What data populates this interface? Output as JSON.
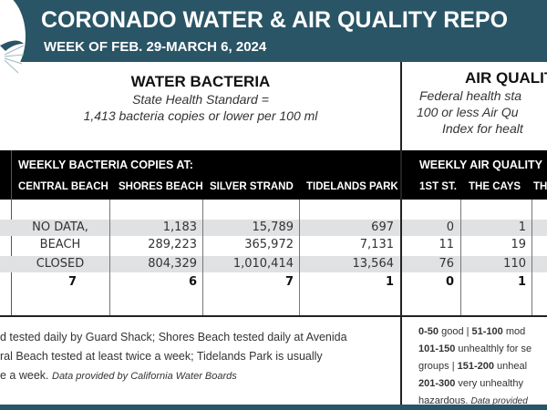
{
  "header": {
    "title": "CORONADO WATER & AIR QUALITY REPO",
    "week": "WEEK OF FEB. 29-MARCH 6, 2024",
    "color": "#2a5566"
  },
  "water": {
    "title": "WATER BACTERIA",
    "standard_line1": "State Health Standard  =",
    "standard_line2": "1,413 bacteria copies or lower per 100 ml",
    "caption": "WEEKLY BACTERIA COPIES AT:",
    "columns": [
      "CENTRAL BEACH",
      "SHORES BEACH",
      "SILVER STRAND",
      "TIDELANDS PARK"
    ],
    "rows": [
      [
        "NO DATA,",
        "1,183",
        "15,789",
        "697"
      ],
      [
        "BEACH",
        "289,223",
        "365,972",
        "7,131"
      ],
      [
        "CLOSED",
        "804,329",
        "1,010,414",
        "13,564"
      ]
    ],
    "totals": [
      "7",
      "6",
      "7",
      "1"
    ],
    "note_line1": "d tested daily by Guard Shack; Shores Beach tested daily at Avenida",
    "note_line2": "ral Beach tested at least twice a week; Tidelands Park is usually",
    "note_line3": "e a week.",
    "note_source": "Data provided by California Water Boards"
  },
  "air": {
    "title": "AIR QUALIT",
    "standard_line1": "Federal health sta",
    "standard_line2": "100 or less Air Qu",
    "standard_line3": "Index for healt",
    "caption": "WEEKLY AIR QUALITY",
    "columns": [
      "1ST ST.",
      "THE CAYS",
      "TH"
    ],
    "rows": [
      [
        "0",
        "1"
      ],
      [
        "11",
        "19"
      ],
      [
        "76",
        "110"
      ]
    ],
    "totals": [
      "0",
      "1"
    ],
    "legend": [
      {
        "range": "0-50",
        "text": " good | "
      },
      {
        "range": "51-100",
        "text": " mod"
      },
      {
        "range": "101-150",
        "text": " unhealthly for se"
      },
      {
        "pre": "groups | ",
        "range": "151-200",
        "text": " unheal"
      },
      {
        "range": "201-300",
        "text": " very unhealthy"
      }
    ],
    "legend_last": "hazardous.",
    "legend_source": "Data provided"
  }
}
